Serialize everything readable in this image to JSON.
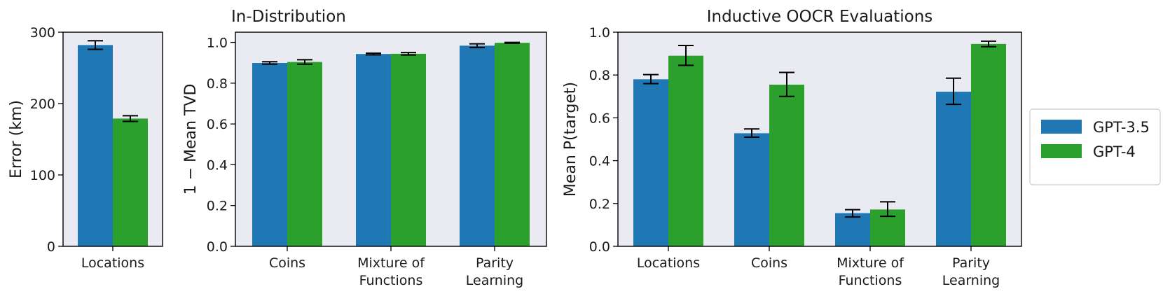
{
  "chart_data": [
    {
      "type": "bar",
      "title": "",
      "xlabel": "",
      "ylabel": "Error (km)",
      "ylim": [
        0,
        300
      ],
      "yticks": [
        0,
        100,
        200,
        300
      ],
      "categories": [
        [
          "Locations"
        ]
      ],
      "series": [
        {
          "name": "GPT-3.5",
          "values": [
            282
          ],
          "errors": [
            [
              276,
              288
            ]
          ]
        },
        {
          "name": "GPT-4",
          "values": [
            179
          ],
          "errors": [
            [
              175,
              183
            ]
          ]
        }
      ]
    },
    {
      "type": "bar",
      "title": "In-Distribution",
      "xlabel": "",
      "ylabel": "1 − Mean TVD",
      "ylim": [
        0,
        1.05
      ],
      "yticks": [
        "0.0",
        "0.2",
        "0.4",
        "0.6",
        "0.8",
        "1.0"
      ],
      "categories": [
        [
          "Coins"
        ],
        [
          "Mixture of",
          "Functions"
        ],
        [
          "Parity",
          "Learning"
        ]
      ],
      "series": [
        {
          "name": "GPT-3.5",
          "values": [
            0.899,
            0.943,
            0.984
          ],
          "errors": [
            [
              0.893,
              0.905
            ],
            [
              0.939,
              0.947
            ],
            [
              0.975,
              0.993
            ]
          ]
        },
        {
          "name": "GPT-4",
          "values": [
            0.904,
            0.944,
            0.998
          ],
          "errors": [
            [
              0.893,
              0.915
            ],
            [
              0.938,
              0.95
            ],
            [
              0.996,
              1.0
            ]
          ]
        }
      ]
    },
    {
      "type": "bar",
      "title": "Inductive OOCR Evaluations",
      "xlabel": "",
      "ylabel": "Mean P(target)",
      "ylim": [
        0,
        1.0
      ],
      "yticks": [
        "0.0",
        "0.2",
        "0.4",
        "0.6",
        "0.8",
        "1.0"
      ],
      "categories": [
        [
          "Locations"
        ],
        [
          "Coins"
        ],
        [
          "Mixture of",
          "Functions"
        ],
        [
          "Parity",
          "Learning"
        ]
      ],
      "series": [
        {
          "name": "GPT-3.5",
          "values": [
            0.78,
            0.528,
            0.155,
            0.722
          ],
          "errors": [
            [
              0.76,
              0.802
            ],
            [
              0.51,
              0.548
            ],
            [
              0.137,
              0.171
            ],
            [
              0.663,
              0.785
            ]
          ]
        },
        {
          "name": "GPT-4",
          "values": [
            0.89,
            0.755,
            0.172,
            0.945
          ],
          "errors": [
            [
              0.845,
              0.938
            ],
            [
              0.7,
              0.812
            ],
            [
              0.14,
              0.208
            ],
            [
              0.932,
              0.958
            ]
          ]
        }
      ]
    }
  ],
  "legend": {
    "placement": "right",
    "entries": [
      {
        "label": "GPT-3.5",
        "color": "#1f77b4"
      },
      {
        "label": "GPT-4",
        "color": "#2ca02c"
      }
    ]
  },
  "colors": {
    "series": [
      "#1f77b4",
      "#2ca02c"
    ],
    "plot_background": "#eaeaf2"
  }
}
